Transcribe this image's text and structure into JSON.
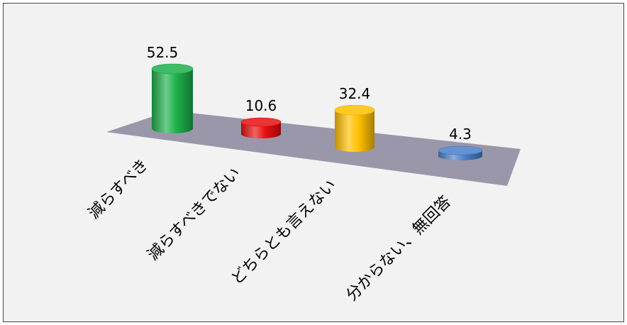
{
  "chart_data": {
    "type": "bar",
    "style": "3d-cylinder",
    "categories": [
      "減らすべき",
      "減らすべきでない",
      "どちらとも言えない",
      "分からない、無回答"
    ],
    "values": [
      52.5,
      10.6,
      32.4,
      4.3
    ],
    "colors": [
      "#1db04b",
      "#e81010",
      "#ffc000",
      "#4a7fc9"
    ],
    "floor_color": "#9a97ab",
    "background": "#f2f2f2",
    "title": "",
    "xlabel": "",
    "ylabel": "",
    "data_labels": [
      "52.5",
      "10.6",
      "32.4",
      "4.3"
    ]
  }
}
